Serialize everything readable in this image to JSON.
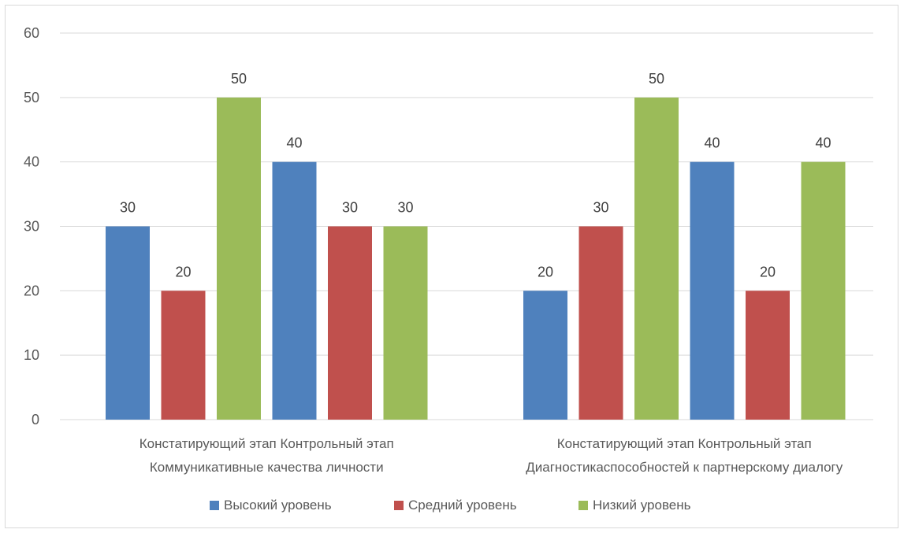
{
  "chart_data": {
    "type": "bar",
    "ylim": [
      0,
      60
    ],
    "yticks": [
      0,
      10,
      20,
      30,
      40,
      50,
      60
    ],
    "grid": true,
    "legend_position": "bottom",
    "groups": [
      {
        "label_line1": "Констатирующий этап Контрольный этап",
        "label_line2": "Коммуникативные качества личности",
        "categories": [
          "Констатирующий этап",
          "Контрольный этап"
        ]
      },
      {
        "label_line1": "Констатирующий этап Контрольный этап",
        "label_line2": "Диагностикаспособностей к партнерскому диалогу",
        "categories": [
          "Констатирующий этап",
          "Контрольный этап"
        ]
      }
    ],
    "series": [
      {
        "name": "Высокий уровень",
        "color": "#4f81bd",
        "values": [
          [
            30,
            40
          ],
          [
            20,
            40
          ]
        ]
      },
      {
        "name": "Средний уровень",
        "color": "#c0504d",
        "values": [
          [
            20,
            30
          ],
          [
            30,
            20
          ]
        ]
      },
      {
        "name": "Низкий уровень",
        "color": "#9bbb59",
        "values": [
          [
            50,
            30
          ],
          [
            50,
            40
          ]
        ]
      }
    ]
  }
}
